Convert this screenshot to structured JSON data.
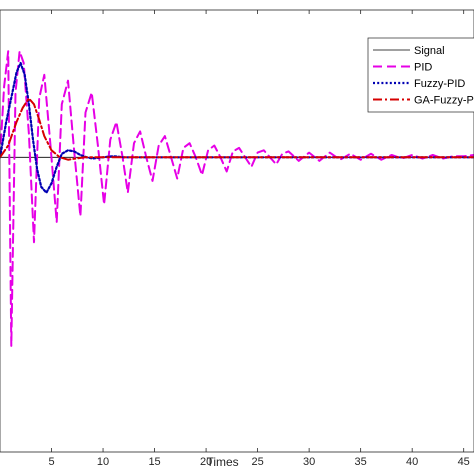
{
  "chart_data": {
    "type": "line",
    "xlabel": "Times",
    "ylabel": "",
    "xlim": [
      0,
      46
    ],
    "ylim": [
      -2.5,
      1.25
    ],
    "xticks": [
      5,
      10,
      15,
      20,
      25,
      30,
      35,
      40,
      45
    ],
    "xtick_labels": [
      "5",
      "10",
      "15",
      "20",
      "25",
      "30",
      "35",
      "40",
      "45"
    ],
    "legend_position": "top-right",
    "grid": false,
    "legend": [
      "Signal",
      "PID",
      "Fuzzy-PID",
      "GA-Fuzzy-PID"
    ],
    "series": [
      {
        "name": "Signal",
        "color": "#000000",
        "dash": "solid",
        "x": [
          0,
          46
        ],
        "y": [
          0,
          0
        ]
      },
      {
        "name": "PID",
        "color": "#e600e6",
        "dash": "dashed",
        "x": [
          0.0,
          0.4,
          0.8,
          1.1,
          1.5,
          1.9,
          2.3,
          2.8,
          3.3,
          3.8,
          4.3,
          4.9,
          5.5,
          6.0,
          6.6,
          7.2,
          7.8,
          8.3,
          8.9,
          9.5,
          10.1,
          10.7,
          11.3,
          11.9,
          12.4,
          13.0,
          13.6,
          14.2,
          14.8,
          15.4,
          16.0,
          16.6,
          17.2,
          17.8,
          18.4,
          19.0,
          19.6,
          20.2,
          20.8,
          21.4,
          22.0,
          22.6,
          23.2,
          23.8,
          24.4,
          25.0,
          25.6,
          26.2,
          26.8,
          27.4,
          28.0,
          29.0,
          30.0,
          31.0,
          32.0,
          33.0,
          34.0,
          35.0,
          36.0,
          37.0,
          38.0,
          39.0,
          40.0,
          41.0,
          42.0,
          43.0,
          44.0,
          45.0,
          46.0
        ],
        "y": [
          0.0,
          0.6,
          0.9,
          -1.6,
          0.55,
          0.9,
          0.8,
          0.2,
          -0.72,
          0.5,
          0.7,
          0.1,
          -0.55,
          0.45,
          0.65,
          0.05,
          -0.5,
          0.38,
          0.55,
          0.1,
          -0.4,
          0.15,
          0.3,
          0.0,
          -0.3,
          0.12,
          0.22,
          0.0,
          -0.2,
          0.1,
          0.18,
          0.0,
          -0.18,
          0.08,
          0.12,
          0.0,
          -0.15,
          0.06,
          0.1,
          0.0,
          -0.12,
          0.05,
          0.08,
          0.0,
          -0.08,
          0.04,
          0.06,
          0.0,
          -0.06,
          0.03,
          0.05,
          -0.03,
          0.04,
          -0.03,
          0.04,
          -0.02,
          0.03,
          -0.02,
          0.03,
          -0.02,
          0.02,
          -0.01,
          0.02,
          -0.01,
          0.02,
          -0.01,
          0.01,
          0.01,
          0.02
        ]
      },
      {
        "name": "Fuzzy-PID",
        "color": "#0000b3",
        "dash": "dotted",
        "x": [
          0.0,
          0.6,
          1.2,
          1.6,
          2.0,
          2.4,
          2.8,
          3.2,
          3.6,
          4.0,
          4.5,
          5.0,
          5.5,
          6.0,
          6.6,
          7.2,
          7.8,
          8.4,
          9.0,
          10.0,
          11.0,
          12.0,
          46.0
        ],
        "y": [
          0.0,
          0.3,
          0.55,
          0.72,
          0.8,
          0.7,
          0.45,
          0.15,
          -0.1,
          -0.25,
          -0.3,
          -0.22,
          -0.08,
          0.03,
          0.06,
          0.05,
          0.02,
          0.0,
          -0.01,
          0.0,
          0.01,
          0.0,
          0.0
        ]
      },
      {
        "name": "GA-Fuzzy-PID",
        "color": "#d60000",
        "dash": "dashdot",
        "x": [
          0.0,
          0.8,
          1.6,
          2.2,
          2.8,
          3.3,
          3.8,
          4.3,
          5.0,
          5.8,
          6.6,
          7.4,
          8.2,
          9.0,
          10.0,
          46.0
        ],
        "y": [
          0.0,
          0.1,
          0.3,
          0.42,
          0.5,
          0.45,
          0.32,
          0.18,
          0.06,
          0.0,
          -0.02,
          -0.01,
          0.0,
          0.0,
          0.0,
          0.0
        ]
      }
    ]
  }
}
